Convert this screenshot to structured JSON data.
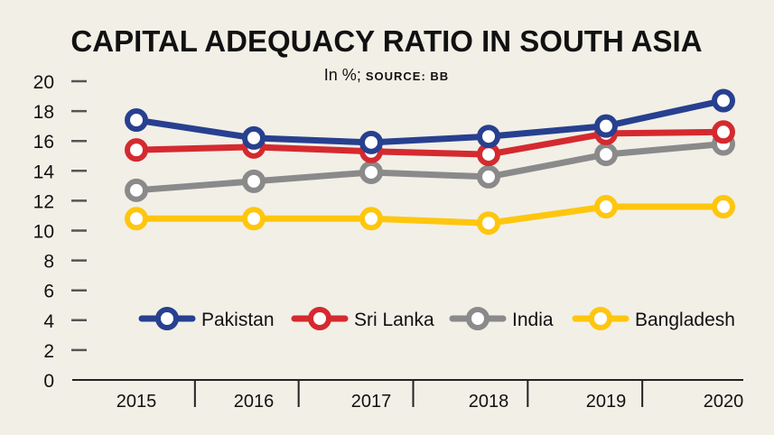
{
  "chart_data": {
    "type": "line",
    "title": "CAPITAL ADEQUACY RATIO IN SOUTH ASIA",
    "subtitle_prefix": "In %;",
    "subtitle_source": "SOURCE: BB",
    "xlabel": "",
    "ylabel": "",
    "ylim": [
      0,
      20
    ],
    "yticks": [
      "0",
      "2",
      "4",
      "6",
      "8",
      "10",
      "12",
      "14",
      "16",
      "18",
      "20"
    ],
    "categories": [
      "2015",
      "2016",
      "2017",
      "2018",
      "2019",
      "2020"
    ],
    "legend_position": "center",
    "series": [
      {
        "name": "Pakistan",
        "color": "#27408f",
        "values": [
          17.4,
          16.2,
          15.9,
          16.3,
          17.0,
          18.7
        ]
      },
      {
        "name": "Sri Lanka",
        "color": "#d42a2f",
        "values": [
          15.4,
          15.6,
          15.3,
          15.1,
          16.5,
          16.6
        ]
      },
      {
        "name": "India",
        "color": "#8a8a8a",
        "values": [
          12.7,
          13.3,
          13.9,
          13.6,
          15.1,
          15.8
        ]
      },
      {
        "name": "Bangladesh",
        "color": "#fec60e",
        "values": [
          10.8,
          10.8,
          10.8,
          10.5,
          11.6,
          11.6
        ]
      }
    ]
  }
}
